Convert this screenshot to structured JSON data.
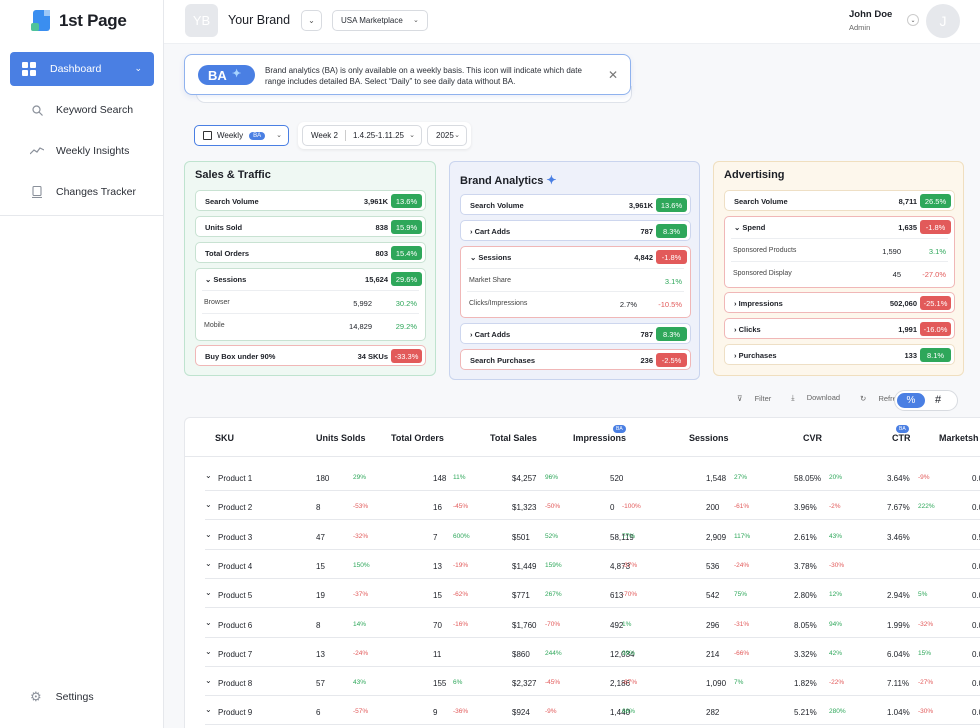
{
  "app": {
    "name": "1st Page"
  },
  "sidebar": {
    "items": [
      {
        "label": "Dashboard"
      },
      {
        "label": "Keyword Search"
      },
      {
        "label": "Weekly Insights"
      },
      {
        "label": "Changes Tracker"
      }
    ],
    "settings": "Settings"
  },
  "header": {
    "brand_initials": "YB",
    "brand_name": "Your Brand",
    "marketplace": "USA Marketplace",
    "user_name": "John Doe",
    "user_role": "Admin",
    "user_initial": "J"
  },
  "banner": {
    "pill": "BA",
    "text": "Brand analytics (BA) is only available on a weekly basis. This icon will indicate which date range includes detailed BA. Select “Daily” to see daily data without BA."
  },
  "filters": {
    "period": "Weekly",
    "period_badge": "BA",
    "week": "Week 2",
    "range": "1.4.25-1.11.25",
    "year": "2025"
  },
  "sales_traffic": {
    "title": "Sales & Traffic",
    "rows": [
      {
        "label": "Search Volume",
        "value": "3,961K",
        "pct": "13.6%"
      },
      {
        "label": "Units Sold",
        "value": "838",
        "pct": "15.9%"
      },
      {
        "label": "Total Orders",
        "value": "803",
        "pct": "15.4%"
      }
    ],
    "sessions": {
      "label": "Sessions",
      "value": "15,624",
      "pct": "29.6%",
      "sub": [
        {
          "label": "Browser",
          "value": "5,992",
          "pct": "30.2%"
        },
        {
          "label": "Mobile",
          "value": "14,829",
          "pct": "29.2%"
        }
      ]
    },
    "buybox": {
      "label": "Buy Box under 90%",
      "value": "34 SKUs",
      "pct": "-33.3%"
    }
  },
  "brand_analytics": {
    "title": "Brand Analytics",
    "search_volume": {
      "label": "Search Volume",
      "value": "3,961K",
      "pct": "13.6%"
    },
    "cart_adds": {
      "label": "Cart Adds",
      "value": "787",
      "pct": "8.3%"
    },
    "sessions": {
      "label": "Sessions",
      "value": "4,842",
      "pct": "-1.8%",
      "sub": [
        {
          "label": "Market Share",
          "value": "",
          "pct": "3.1%"
        },
        {
          "label": "Clicks/Impressions",
          "value": "2.7%",
          "pct": "-10.5%"
        }
      ]
    },
    "cart_adds2": {
      "label": "Cart Adds",
      "value": "787",
      "pct": "8.3%"
    },
    "search_purchases": {
      "label": "Search Purchases",
      "value": "236",
      "pct": "-2.5%"
    }
  },
  "advertising": {
    "title": "Advertising",
    "search_volume": {
      "label": "Search Volume",
      "value": "8,711",
      "pct": "26.5%"
    },
    "spend": {
      "label": "Spend",
      "value": "1,635",
      "pct": "-1.8%",
      "sub": [
        {
          "label": "Sponsored Products",
          "value": "1,590",
          "pct": "3.1%"
        },
        {
          "label": "Sponsored Display",
          "value": "45",
          "pct": "-27.0%"
        }
      ]
    },
    "impressions": {
      "label": "Impressions",
      "value": "502,060",
      "pct": "-25.1%"
    },
    "clicks": {
      "label": "Clicks",
      "value": "1,991",
      "pct": "-16.0%"
    },
    "purchases": {
      "label": "Purchases",
      "value": "133",
      "pct": "8.1%"
    }
  },
  "toolbar": {
    "filter": "Filter",
    "download": "Download",
    "refresh": "Refresh",
    "pct": "%",
    "num": "#"
  },
  "table": {
    "headers": [
      "SKU",
      "Units Solds",
      "Total Orders",
      "Total Sales",
      "Impressions",
      "Sessions",
      "CVR",
      "CTR",
      "Marketsh"
    ],
    "ba_badge": "BA",
    "rows": [
      {
        "sku": "Product 1",
        "units": "180",
        "units_p": "29%",
        "orders": "148",
        "orders_p": "11%",
        "sales": "$4,257",
        "sales_p": "96%",
        "impr": "520",
        "impr_p": "",
        "sess": "1,548",
        "sess_p": "27%",
        "cvr": "58.05%",
        "cvr_p": "20%",
        "ctr": "3.64%",
        "ctr_p": "-9%",
        "ms": "0.0"
      },
      {
        "sku": "Product 2",
        "units": "8",
        "units_p": "-53%",
        "orders": "16",
        "orders_p": "-45%",
        "sales": "$1,323",
        "sales_p": "-50%",
        "impr": "0",
        "impr_p": "-100%",
        "sess": "200",
        "sess_p": "-61%",
        "cvr": "3.96%",
        "cvr_p": "-2%",
        "ctr": "7.67%",
        "ctr_p": "222%",
        "ms": "0.0"
      },
      {
        "sku": "Product 3",
        "units": "47",
        "units_p": "-32%",
        "orders": "7",
        "orders_p": "600%",
        "sales": "$501",
        "sales_p": "52%",
        "impr": "58,119",
        "impr_p": "77%",
        "sess": "2,909",
        "sess_p": "117%",
        "cvr": "2.61%",
        "cvr_p": "43%",
        "ctr": "3.46%",
        "ctr_p": "",
        "ms": "0.5"
      },
      {
        "sku": "Product 4",
        "units": "15",
        "units_p": "150%",
        "orders": "13",
        "orders_p": "-19%",
        "sales": "$1,449",
        "sales_p": "159%",
        "impr": "4,873",
        "impr_p": "-37%",
        "sess": "536",
        "sess_p": "-24%",
        "cvr": "3.78%",
        "cvr_p": "-30%",
        "ctr": "",
        "ctr_p": "",
        "ms": "0.0"
      },
      {
        "sku": "Product 5",
        "units": "19",
        "units_p": "-37%",
        "orders": "15",
        "orders_p": "-62%",
        "sales": "$771",
        "sales_p": "267%",
        "impr": "613",
        "impr_p": "-70%",
        "sess": "542",
        "sess_p": "75%",
        "cvr": "2.80%",
        "cvr_p": "12%",
        "ctr": "2.94%",
        "ctr_p": "5%",
        "ms": "0.0"
      },
      {
        "sku": "Product 6",
        "units": "8",
        "units_p": "14%",
        "orders": "70",
        "orders_p": "-16%",
        "sales": "$1,760",
        "sales_p": "-70%",
        "impr": "492",
        "impr_p": "1%",
        "sess": "296",
        "sess_p": "-31%",
        "cvr": "8.05%",
        "cvr_p": "94%",
        "ctr": "1.99%",
        "ctr_p": "-32%",
        "ms": "0.0"
      },
      {
        "sku": "Product 7",
        "units": "13",
        "units_p": "-24%",
        "orders": "11",
        "orders_p": "",
        "sales": "$860",
        "sales_p": "244%",
        "impr": "12,034",
        "impr_p": "99%",
        "sess": "214",
        "sess_p": "-66%",
        "cvr": "3.32%",
        "cvr_p": "42%",
        "ctr": "6.04%",
        "ctr_p": "15%",
        "ms": "0.0"
      },
      {
        "sku": "Product 8",
        "units": "57",
        "units_p": "43%",
        "orders": "155",
        "orders_p": "6%",
        "sales": "$2,327",
        "sales_p": "-45%",
        "impr": "2,186",
        "impr_p": "-67%",
        "sess": "1,090",
        "sess_p": "7%",
        "cvr": "1.82%",
        "cvr_p": "-22%",
        "ctr": "7.11%",
        "ctr_p": "-27%",
        "ms": "0.0"
      },
      {
        "sku": "Product 9",
        "units": "6",
        "units_p": "-57%",
        "orders": "9",
        "orders_p": "-36%",
        "sales": "$924",
        "sales_p": "-9%",
        "impr": "1,440",
        "impr_p": "66%",
        "sess": "282",
        "sess_p": "",
        "cvr": "5.21%",
        "cvr_p": "280%",
        "ctr": "1.04%",
        "ctr_p": "-30%",
        "ms": "0.0"
      }
    ]
  }
}
